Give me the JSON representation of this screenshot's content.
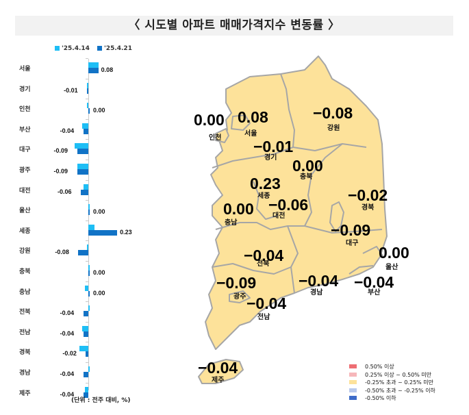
{
  "title": "〈 시도별 아파트 매매가격지수 변동률 〉",
  "chart_data": {
    "type": "bar",
    "orientation": "horizontal",
    "title": "시도별 아파트 매매가격지수 변동률",
    "unit_note": "(단위 : 전주 대비, %)",
    "categories": [
      "서울",
      "경기",
      "인천",
      "부산",
      "대구",
      "광주",
      "대전",
      "울산",
      "세종",
      "강원",
      "충북",
      "충남",
      "전북",
      "전남",
      "경북",
      "경남",
      "제주"
    ],
    "series": [
      {
        "name": "'25.4.14",
        "color": "#1ebef5",
        "values": [
          0.08,
          -0.01,
          -0.01,
          -0.05,
          -0.11,
          -0.09,
          -0.04,
          0.01,
          0.05,
          -0.01,
          0.0,
          -0.03,
          0.0,
          -0.05,
          -0.07,
          0.0,
          -0.03
        ]
      },
      {
        "name": "'25.4.21",
        "color": "#1173c6",
        "values": [
          0.08,
          -0.01,
          0.0,
          -0.04,
          -0.09,
          -0.09,
          -0.06,
          0.0,
          0.23,
          -0.08,
          0.0,
          0.0,
          -0.04,
          -0.04,
          -0.02,
          -0.04,
          -0.04
        ]
      }
    ],
    "data_labels": [
      "0.08",
      "-0.01",
      "0.00",
      "-0.04",
      "-0.09",
      "-0.09",
      "-0.06",
      "0.00",
      "0.23",
      "-0.08",
      "0.00",
      "0.00",
      "-0.04",
      "-0.04",
      "-0.02",
      "-0.04",
      "-0.04"
    ],
    "legend_position": "top",
    "grid": false
  },
  "legend": {
    "prev": "'25.4.14",
    "curr": "'25.4.21"
  },
  "unit_note": "(단위 : 전주 대비, %)",
  "map": {
    "regions": [
      {
        "name": "인천",
        "value": "0.00"
      },
      {
        "name": "서울",
        "value": "0.08"
      },
      {
        "name": "강원",
        "value": "-0.08"
      },
      {
        "name": "경기",
        "value": "-0.01"
      },
      {
        "name": "충북",
        "value": "0.00"
      },
      {
        "name": "세종",
        "value": "0.23"
      },
      {
        "name": "대전",
        "value": "-0.06"
      },
      {
        "name": "충남",
        "value": "0.00"
      },
      {
        "name": "경북",
        "value": "-0.02"
      },
      {
        "name": "대구",
        "value": "-0.09"
      },
      {
        "name": "울산",
        "value": "0.00"
      },
      {
        "name": "전북",
        "value": "-0.04"
      },
      {
        "name": "광주",
        "value": "-0.09"
      },
      {
        "name": "경남",
        "value": "-0.04"
      },
      {
        "name": "부산",
        "value": "-0.04"
      },
      {
        "name": "전남",
        "value": "-0.04"
      },
      {
        "name": "제주",
        "value": "-0.04"
      }
    ],
    "fill_color": "#fde29a",
    "border_color": "#a6a6a6",
    "legend": [
      {
        "label": "0.50% 이상",
        "color": "#ee6e73"
      },
      {
        "label": "0.25% 이상 ~ 0.50% 미만",
        "color": "#f6b7ba"
      },
      {
        "label": "-0.25% 초과 ~ 0.25% 미만",
        "color": "#fde29a"
      },
      {
        "label": "-0.50% 초과 ~ -0.25% 이하",
        "color": "#b9c9ec"
      },
      {
        "label": "-0.50% 이하",
        "color": "#3d6bc8"
      }
    ]
  }
}
